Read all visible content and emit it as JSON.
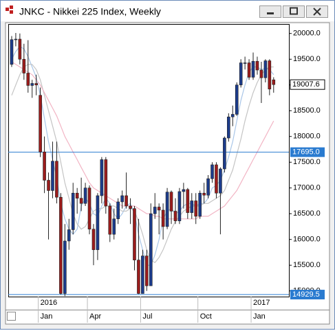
{
  "chart_data": {
    "type": "candlestick",
    "title": "JNKC - Nikkei 225 Index, Weekly",
    "categories": [
      null,
      null,
      null,
      null,
      null,
      null,
      null,
      "Jan",
      null,
      null,
      null,
      null,
      null,
      null,
      null,
      null,
      null,
      null,
      null,
      "Apr",
      null,
      null,
      null,
      null,
      null,
      null,
      null,
      null,
      null,
      null,
      null,
      null,
      "Jul",
      null,
      null,
      null,
      null,
      null,
      null,
      null,
      null,
      null,
      null,
      null,
      null,
      null,
      "Oct",
      null,
      null,
      null,
      null,
      null,
      null,
      null,
      null,
      null,
      null,
      null,
      null,
      "Jan",
      null,
      null,
      null,
      null,
      null
    ],
    "years": [
      null,
      null,
      null,
      null,
      null,
      null,
      null,
      "2016",
      null,
      null,
      null,
      null,
      null,
      null,
      null,
      null,
      null,
      null,
      null,
      null,
      null,
      null,
      null,
      null,
      null,
      null,
      null,
      null,
      null,
      null,
      null,
      null,
      null,
      null,
      null,
      null,
      null,
      null,
      null,
      null,
      null,
      null,
      null,
      null,
      null,
      null,
      null,
      null,
      null,
      null,
      null,
      null,
      null,
      null,
      null,
      null,
      null,
      null,
      null,
      "2017",
      null,
      null,
      null,
      null,
      null
    ],
    "open": [
      19400,
      19880,
      19890,
      19500,
      19230,
      18990,
      19030,
      18800,
      17700,
      17150,
      16950,
      17520,
      16820,
      14950,
      15970,
      16190,
      16900,
      16800,
      16700,
      17000,
      16200,
      15800,
      16850,
      17550,
      16650,
      16100,
      16400,
      16730,
      16850,
      16650,
      16600,
      15600,
      14950,
      15680,
      15100,
      16500,
      16630,
      16570,
      16250,
      16920,
      16550,
      16360,
      16930,
      16970,
      16520,
      16750,
      16450,
      16900,
      16860,
      17180,
      17450,
      16900,
      17370,
      17970,
      18380,
      18430,
      19000,
      19430,
      19430,
      19150,
      19460,
      19290,
      19140,
      19470,
      19100
    ],
    "high": [
      19950,
      20010,
      20000,
      19800,
      19870,
      19100,
      19200,
      18950,
      18000,
      17300,
      17900,
      17900,
      16900,
      16300,
      16400,
      17100,
      17000,
      17200,
      17100,
      17050,
      16300,
      16900,
      17600,
      17600,
      16700,
      16600,
      16800,
      16950,
      17300,
      16800,
      16650,
      16400,
      15800,
      15800,
      16700,
      16900,
      16700,
      16700,
      17000,
      16950,
      16800,
      17000,
      17100,
      17000,
      16900,
      16900,
      16950,
      17100,
      17250,
      17500,
      17500,
      17400,
      18000,
      18450,
      18600,
      19050,
      19500,
      19550,
      19500,
      19630,
      19550,
      19450,
      19500,
      19500,
      19150
    ],
    "low": [
      19350,
      19750,
      19400,
      19100,
      18850,
      18750,
      18800,
      17600,
      16900,
      16000,
      16800,
      16700,
      14929.5,
      14900,
      15800,
      16100,
      16500,
      16550,
      16650,
      16100,
      15500,
      15600,
      16700,
      16500,
      15950,
      16000,
      16300,
      16600,
      16600,
      16300,
      15400,
      14940,
      14950,
      15000,
      15100,
      16400,
      16100,
      16000,
      16200,
      16300,
      16300,
      16300,
      16600,
      16400,
      16400,
      16300,
      16400,
      16700,
      16800,
      17100,
      16800,
      16100,
      17300,
      17900,
      18200,
      18400,
      18950,
      19300,
      19100,
      19100,
      19200,
      18650,
      19050,
      18800,
      18850
    ],
    "close": [
      19880,
      19890,
      19500,
      19230,
      18990,
      19030,
      19000,
      17700,
      17150,
      16950,
      17520,
      16820,
      14950,
      15970,
      16190,
      16900,
      16800,
      16700,
      17000,
      16200,
      15800,
      16850,
      17550,
      16650,
      16100,
      16400,
      16730,
      16850,
      16650,
      16600,
      15600,
      14950,
      15680,
      15100,
      16500,
      16630,
      16570,
      16250,
      16920,
      16550,
      16360,
      16930,
      16970,
      16520,
      16750,
      16450,
      16900,
      16860,
      17180,
      17450,
      16900,
      17370,
      17970,
      18380,
      18430,
      19000,
      19430,
      19430,
      19150,
      19460,
      19290,
      19140,
      19470,
      18920,
      19007.6
    ],
    "up_color": "#1c3c8c",
    "down_color": "#9c1c1c",
    "lines": [
      {
        "color": "#a9c6e8",
        "values": [
          19500,
          19650,
          19750,
          19700,
          19550,
          19350,
          19150,
          18800,
          18350,
          17900,
          17550,
          17200,
          16700,
          16400,
          16200,
          16100,
          16200,
          16650,
          16800,
          16700,
          16500,
          16450,
          16650,
          16800,
          16700,
          16500,
          16400,
          16500,
          16650,
          16700,
          16500,
          16100,
          15800,
          15500,
          15500,
          15700,
          16000,
          16400,
          16550,
          16600,
          16500,
          16550,
          16650,
          16700,
          16700,
          16650,
          16700,
          16700,
          16800,
          17000,
          17050,
          17150,
          17350,
          17600,
          17900,
          18300,
          18700,
          19000,
          19250,
          19350,
          19350,
          19300,
          19320,
          19300,
          19200
        ]
      },
      {
        "color": "#c4c4c4",
        "values": [
          18800,
          19000,
          19200,
          19350,
          19400,
          19400,
          19300,
          19100,
          18800,
          18500,
          18200,
          17900,
          17500,
          17100,
          16800,
          16500,
          16300,
          16200,
          16250,
          16400,
          16550,
          16600,
          16600,
          16650,
          16650,
          16650,
          16600,
          16550,
          16550,
          16600,
          16550,
          16350,
          16100,
          15800,
          15600,
          15550,
          15650,
          15800,
          16000,
          16200,
          16350,
          16450,
          16550,
          16600,
          16650,
          16650,
          16650,
          16700,
          16700,
          16750,
          16800,
          16850,
          16950,
          17150,
          17350,
          17650,
          17950,
          18300,
          18600,
          18850,
          19050,
          19200,
          19300,
          19350,
          19350
        ]
      },
      {
        "color": "#f2b4c4",
        "values": [
          19450,
          19400,
          19350,
          19300,
          19250,
          19200,
          19100,
          19000,
          18850,
          18700,
          18550,
          18400,
          18200,
          18000,
          17850,
          17700,
          17550,
          17400,
          17250,
          17100,
          17000,
          16950,
          16900,
          16850,
          16800,
          16750,
          16700,
          16650,
          16650,
          16650,
          16650,
          16600,
          16550,
          16500,
          16500,
          16450,
          16450,
          16400,
          16400,
          16400,
          16400,
          16400,
          16400,
          16400,
          16400,
          16400,
          16450,
          16450,
          16450,
          16500,
          16550,
          16600,
          16650,
          16750,
          16850,
          16950,
          17100,
          17250,
          17400,
          17550,
          17700,
          17850,
          18000,
          18150,
          18300
        ]
      }
    ],
    "ylim": [
      14890,
      20170
    ],
    "yticks": [
      {
        "value": 15000,
        "label": "15000.0"
      },
      {
        "value": 15500,
        "label": "15500.0"
      },
      {
        "value": 16000,
        "label": "16000.0"
      },
      {
        "value": 16500,
        "label": "16500.0"
      },
      {
        "value": 17000,
        "label": "17000.0"
      },
      {
        "value": 17500,
        "label": "17500.0"
      },
      {
        "value": 18000,
        "label": "18000.0"
      },
      {
        "value": 18500,
        "label": "18500.0"
      },
      {
        "value": 19000,
        "label": "19000.0"
      },
      {
        "value": 19500,
        "label": "19500.0"
      },
      {
        "value": 20000,
        "label": "20000.0"
      }
    ],
    "last_price": 19007.6,
    "price_lines": [
      {
        "value": 17695,
        "label": "17695.0"
      },
      {
        "value": 14929.5,
        "label": "14929.5"
      }
    ],
    "price_line_color": "#2a7bd0"
  }
}
